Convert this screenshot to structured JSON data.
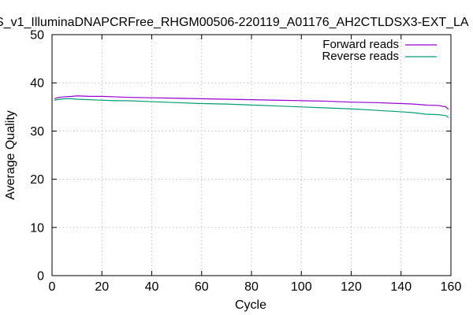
{
  "chart_data": {
    "type": "line",
    "title": "S_v1_IlluminaDNAPCRFree_RHGM00506-220119_A01176_AH2CTLDSX3-EXT_LA",
    "xlabel": "Cycle",
    "ylabel": "Average Quality",
    "xlim": [
      0,
      160
    ],
    "ylim": [
      0,
      50
    ],
    "x_ticks": [
      "0",
      "20",
      "40",
      "60",
      "80",
      "100",
      "120",
      "140",
      "160"
    ],
    "y_ticks": [
      "0",
      "10",
      "20",
      "30",
      "40",
      "50"
    ],
    "grid": true,
    "legend_position": "top-right",
    "series": [
      {
        "name": "Forward reads",
        "color": "#9400d3",
        "x": [
          1,
          2,
          3,
          5,
          8,
          10,
          15,
          20,
          25,
          30,
          40,
          50,
          60,
          70,
          80,
          90,
          100,
          110,
          120,
          130,
          140,
          145,
          150,
          155,
          158,
          159
        ],
        "y": [
          36.7,
          36.9,
          37.0,
          37.1,
          37.2,
          37.3,
          37.2,
          37.2,
          37.1,
          37.0,
          36.9,
          36.8,
          36.7,
          36.6,
          36.5,
          36.4,
          36.3,
          36.2,
          36.0,
          35.9,
          35.7,
          35.6,
          35.4,
          35.3,
          35.0,
          34.5
        ]
      },
      {
        "name": "Reverse reads",
        "color": "#009e73",
        "x": [
          1,
          2,
          3,
          5,
          8,
          10,
          15,
          20,
          25,
          30,
          40,
          50,
          60,
          70,
          80,
          90,
          100,
          110,
          120,
          130,
          140,
          145,
          150,
          155,
          158,
          159
        ],
        "y": [
          36.4,
          36.5,
          36.6,
          36.7,
          36.7,
          36.6,
          36.5,
          36.4,
          36.3,
          36.3,
          36.1,
          35.9,
          35.7,
          35.6,
          35.4,
          35.2,
          35.0,
          34.8,
          34.6,
          34.3,
          34.0,
          33.8,
          33.5,
          33.4,
          33.2,
          32.8
        ]
      }
    ]
  }
}
